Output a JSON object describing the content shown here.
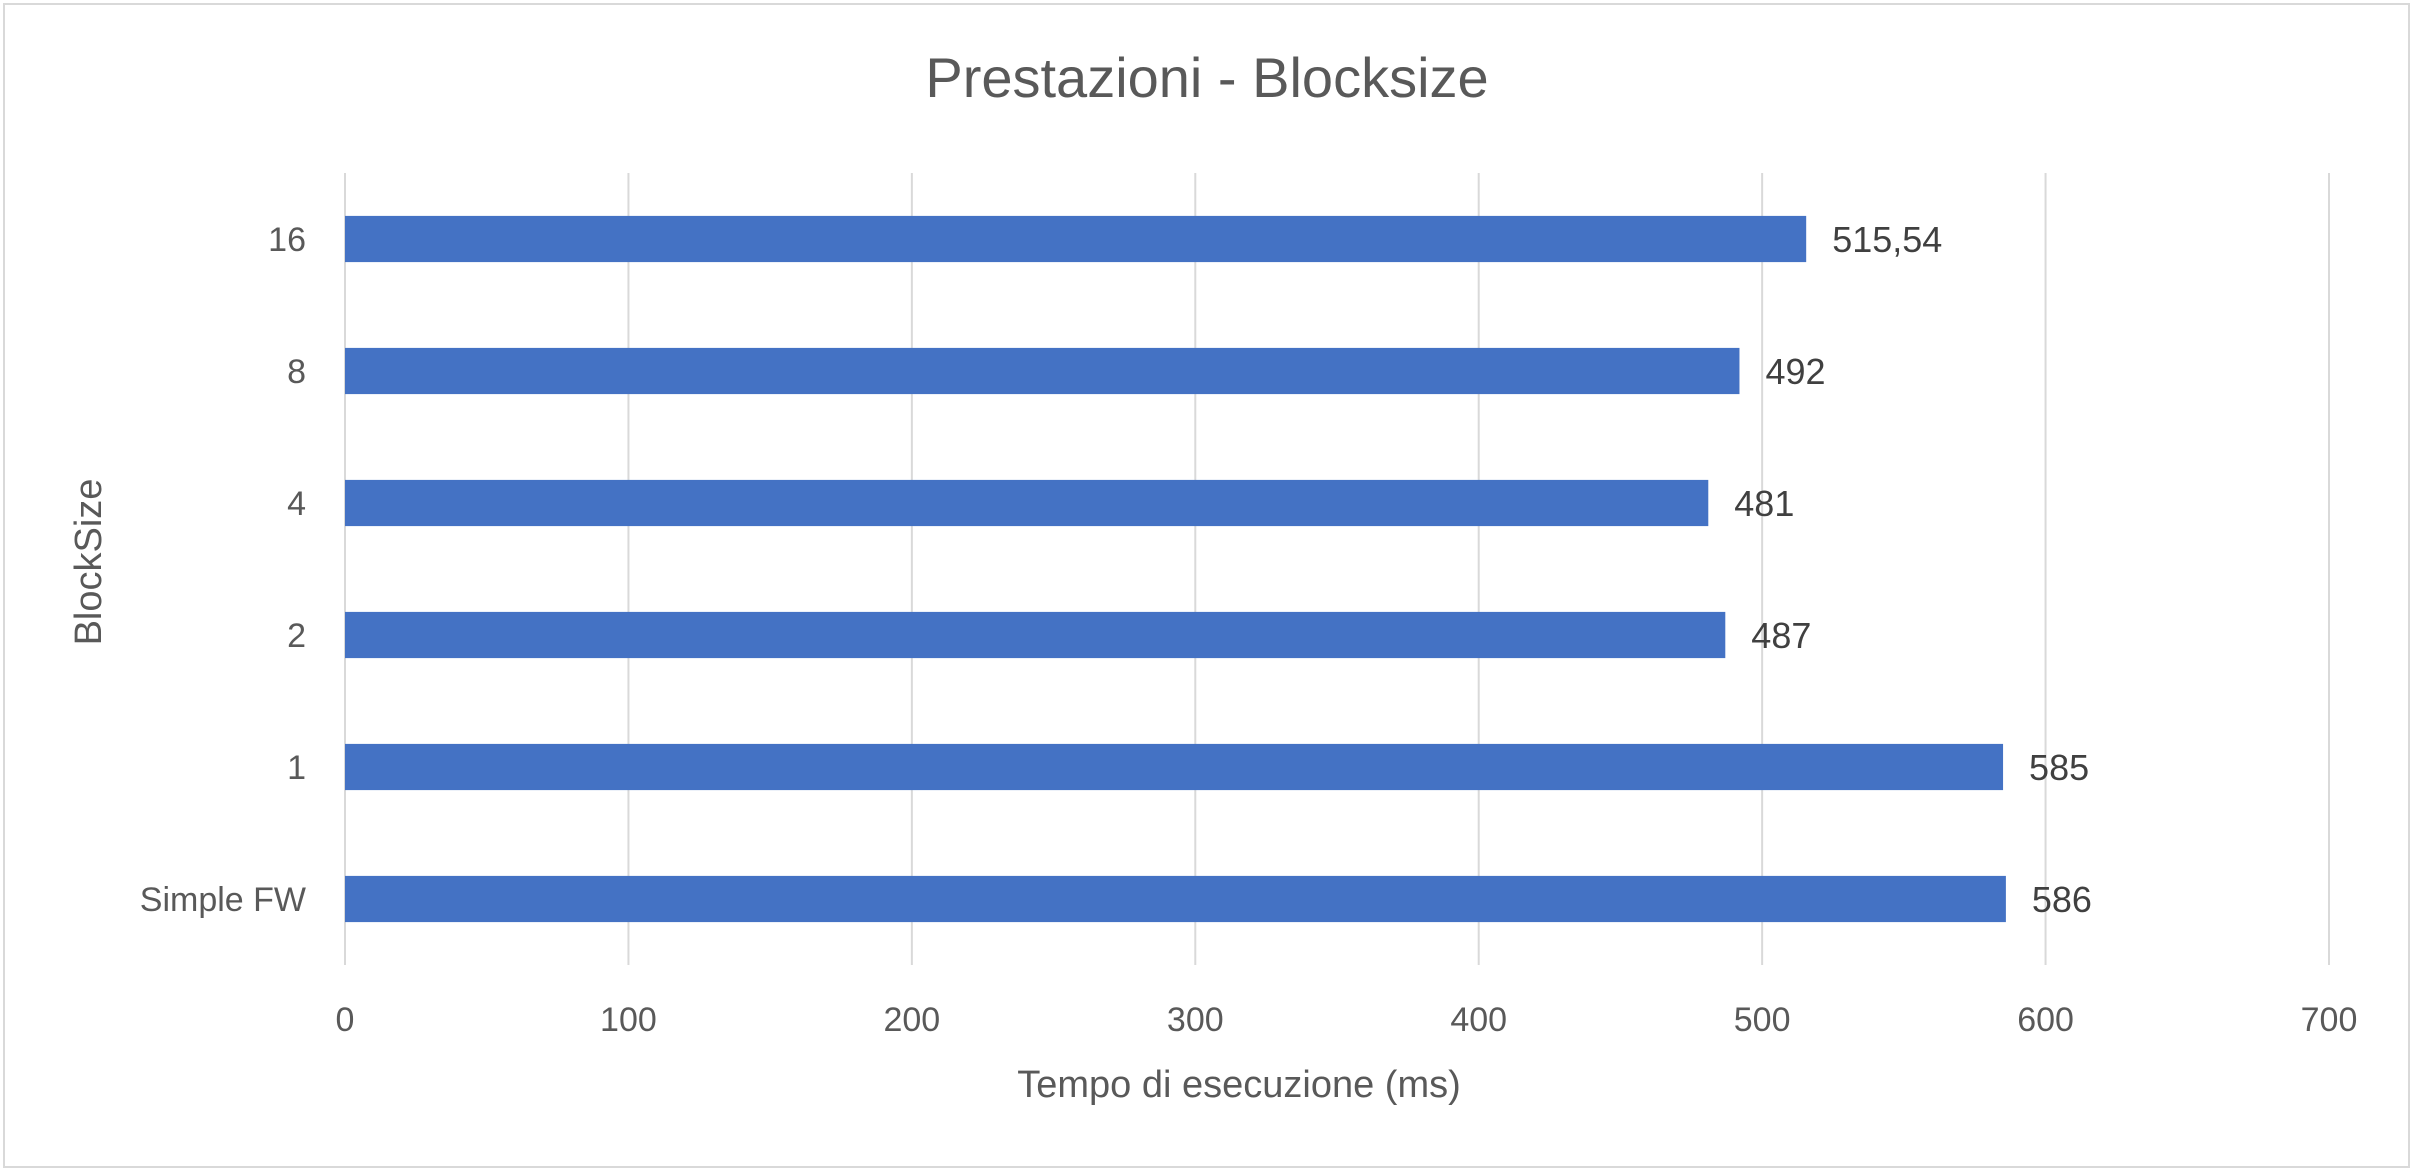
{
  "chart_data": {
    "type": "bar",
    "orientation": "horizontal",
    "title": "Prestazioni - Blocksize",
    "xlabel": "Tempo di esecuzione (ms)",
    "ylabel": "BlockSize",
    "categories": [
      "16",
      "8",
      "4",
      "2",
      "1",
      "Simple FW"
    ],
    "values": [
      515.54,
      492,
      481,
      487,
      585,
      586
    ],
    "data_labels": [
      "515,54",
      "492",
      "481",
      "487",
      "585",
      "586"
    ],
    "xlim": [
      0,
      700
    ],
    "xticks": [
      0,
      100,
      200,
      300,
      400,
      500,
      600,
      700
    ],
    "grid": true,
    "legend": "none",
    "bar_color": "#4472C4",
    "grid_color": "#d9d9d9"
  }
}
